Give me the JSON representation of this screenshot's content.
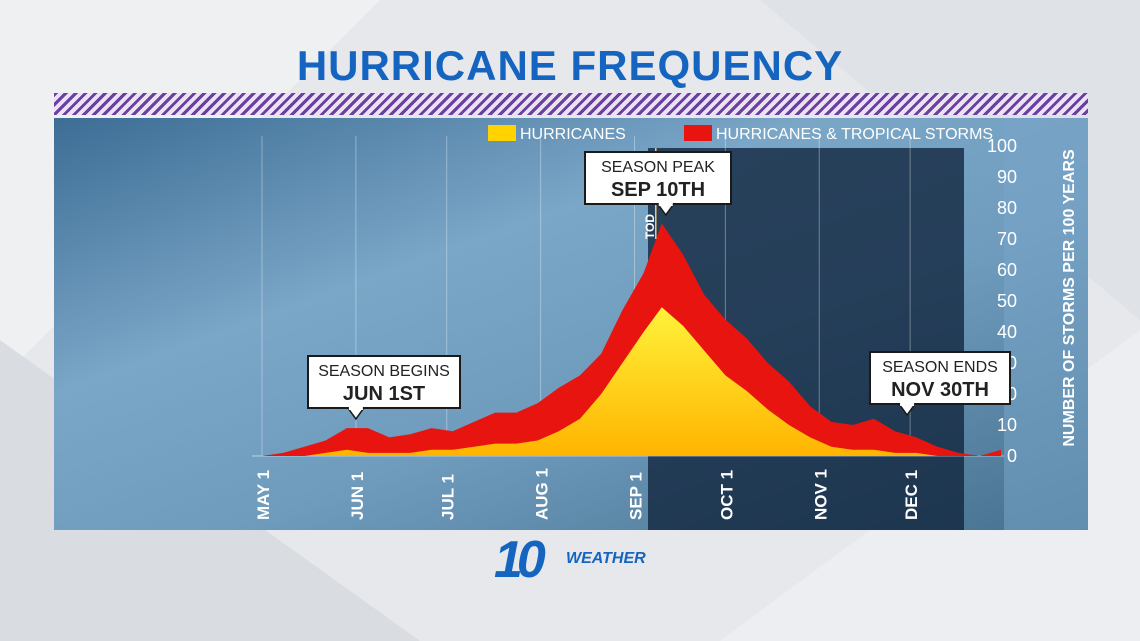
{
  "header": {
    "title": "HURRICANE FREQUENCY"
  },
  "logo": {
    "number": "10",
    "text": "WEATHER"
  },
  "colors": {
    "title": "#1565c0",
    "hurricanes": "#ffd200",
    "hurricanes_gradient_top": "#fff23a",
    "tropical": "#e8140f",
    "callout_border": "#1a1a1a",
    "callout_bg": "#ffffff",
    "axis_text": "#ffffff"
  },
  "chart_data": {
    "type": "area",
    "title": "HURRICANE FREQUENCY",
    "xlabel": "",
    "ylabel": "NUMBER OF STORMS PER 100 YEARS",
    "ylim": [
      0,
      100
    ],
    "yticks": [
      0,
      10,
      20,
      30,
      40,
      50,
      60,
      70,
      80,
      90,
      100
    ],
    "xticks": [
      "MAY 1",
      "JUN 1",
      "JUL 1",
      "AUG 1",
      "SEP 1",
      "OCT 1",
      "NOV 1",
      "DEC 1"
    ],
    "xrange": [
      "May 1",
      "Dec 31"
    ],
    "legend": {
      "placement": "top",
      "entries": [
        "HURRICANES",
        "HURRICANES & TROPICAL STORMS"
      ]
    },
    "grid": "vertical lines at month starts",
    "x": [
      "May 1",
      "May 8",
      "May 15",
      "May 22",
      "May 29",
      "Jun 5",
      "Jun 12",
      "Jun 19",
      "Jun 26",
      "Jul 3",
      "Jul 10",
      "Jul 17",
      "Jul 24",
      "Jul 31",
      "Aug 7",
      "Aug 14",
      "Aug 21",
      "Aug 28",
      "Sep 4",
      "Sep 10",
      "Sep 17",
      "Sep 24",
      "Oct 1",
      "Oct 8",
      "Oct 15",
      "Oct 22",
      "Oct 29",
      "Nov 5",
      "Nov 12",
      "Nov 19",
      "Nov 26",
      "Dec 3",
      "Dec 10",
      "Dec 17",
      "Dec 24",
      "Dec 31"
    ],
    "series": [
      {
        "name": "HURRICANES & TROPICAL STORMS",
        "values": [
          0,
          1,
          3,
          5,
          9,
          9,
          6,
          7,
          9,
          8,
          11,
          14,
          14,
          17,
          22,
          26,
          33,
          47,
          59,
          75,
          65,
          52,
          44,
          38,
          30,
          24,
          16,
          11,
          10,
          12,
          8,
          6,
          3,
          1,
          0,
          2
        ]
      },
      {
        "name": "HURRICANES",
        "values": [
          0,
          0,
          0,
          1,
          2,
          1,
          1,
          1,
          2,
          2,
          3,
          4,
          4,
          5,
          8,
          12,
          20,
          30,
          40,
          48,
          42,
          34,
          26,
          21,
          15,
          10,
          6,
          3,
          2,
          2,
          1,
          1,
          0,
          0,
          0,
          0
        ]
      }
    ],
    "annotations": [
      {
        "line1": "SEASON BEGINS",
        "line2": "JUN 1ST",
        "date": "Jun 1"
      },
      {
        "line1": "SEASON PEAK",
        "line2": "SEP 10TH",
        "date": "Sep 10"
      },
      {
        "line1": "SEASON ENDS",
        "line2": "NOV 30TH",
        "date": "Nov 30"
      }
    ],
    "marker_label": "TOD"
  }
}
